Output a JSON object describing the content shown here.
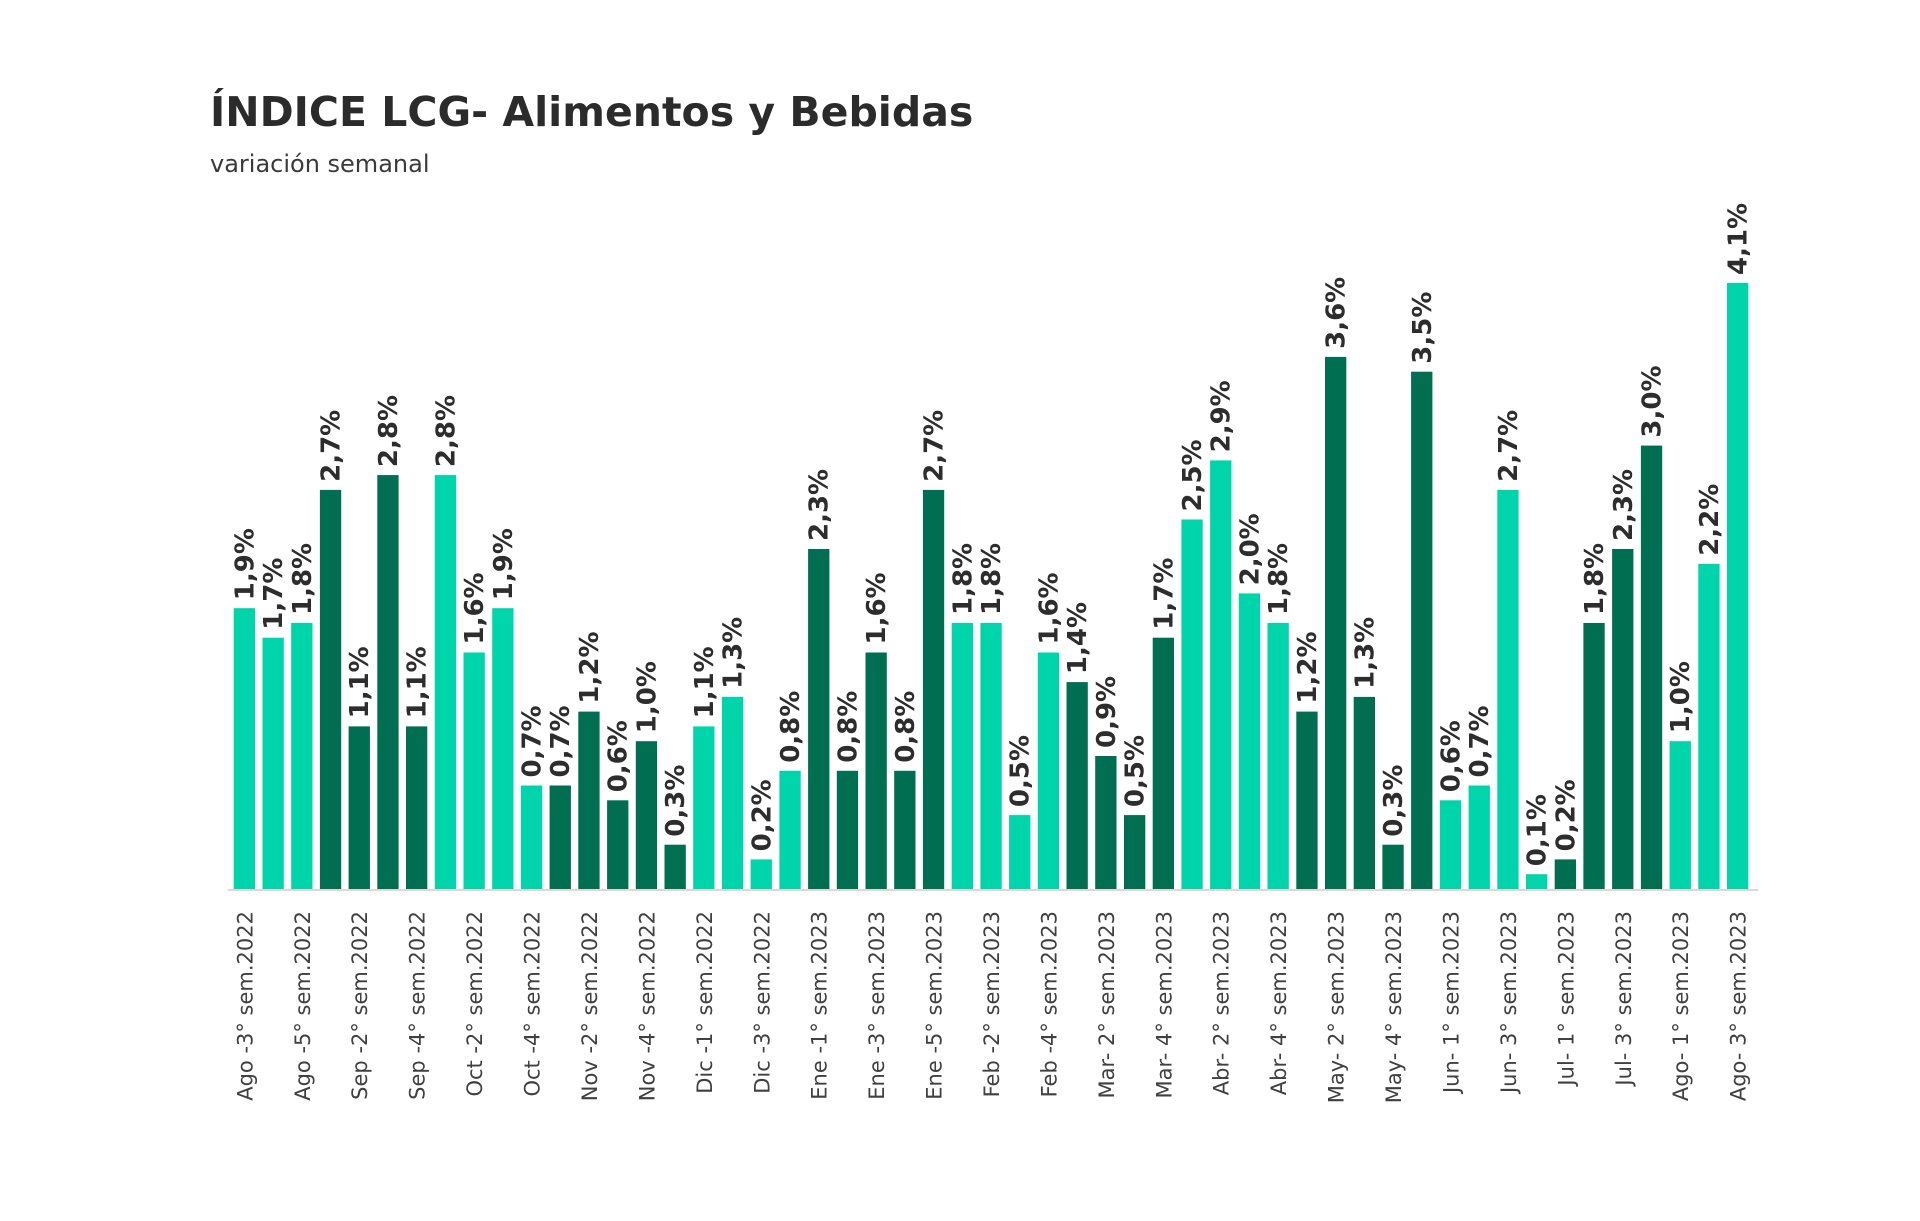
{
  "header": {
    "title": "ÍNDICE LCG- Alimentos y Bebidas",
    "subtitle": "variación semanal"
  },
  "colors": {
    "light": "#00D4AA",
    "dark": "#006E50",
    "axis": "#d9d9d9",
    "label": "#2d2d2d"
  },
  "chart_data": {
    "type": "bar",
    "title": "ÍNDICE LCG- Alimentos y Bebidas",
    "subtitle": "variación semanal",
    "xlabel": "",
    "ylabel": "",
    "ylim": [
      0,
      4.1
    ],
    "grid": false,
    "legend": "none",
    "label_every": 2,
    "tick_labels": [
      "Ago -3° sem.2022",
      "Ago -5° sem.2022",
      "Sep -2° sem.2022",
      "Sep -4° sem.2022",
      "Oct -2° sem.2022",
      "Oct -4° sem.2022",
      "Nov -2° sem.2022",
      "Nov -4° sem.2022",
      "Dic -1° sem.2022",
      "Dic -3° sem.2022",
      "Ene -1° sem.2023",
      "Ene -3° sem.2023",
      "Ene -5° sem.2023",
      "Feb -2° sem.2023",
      "Feb -4° sem.2023",
      "Mar- 2° sem.2023",
      "Mar- 4° sem.2023",
      "Abr- 2° sem.2023",
      "Abr- 4° sem.2023",
      "May- 2° sem.2023",
      "May- 4° sem.2023",
      "Jun- 1° sem.2023",
      "Jun- 3° sem.2023",
      "Jul- 1° sem.2023",
      "Jul- 3° sem.2023",
      "Ago- 1° sem.2023",
      "Ago- 3° sem.2023"
    ],
    "values": [
      1.9,
      1.7,
      1.8,
      2.7,
      1.1,
      2.8,
      1.1,
      2.8,
      1.6,
      1.9,
      0.7,
      0.7,
      1.2,
      0.6,
      1.0,
      0.3,
      1.1,
      1.3,
      0.2,
      0.8,
      2.3,
      0.8,
      1.6,
      0.8,
      2.7,
      1.8,
      1.8,
      0.5,
      1.6,
      1.4,
      0.9,
      0.5,
      1.7,
      2.5,
      2.9,
      2.0,
      1.8,
      1.2,
      3.6,
      1.3,
      0.3,
      3.5,
      0.6,
      0.7,
      2.7,
      0.1,
      0.2,
      1.8,
      2.3,
      3.0,
      1.0,
      2.2,
      4.1
    ],
    "data_labels": [
      "1,9%",
      "1,7%",
      "1,8%",
      "2,7%",
      "1,1%",
      "2,8%",
      "1,1%",
      "2,8%",
      "1,6%",
      "1,9%",
      "0,7%",
      "0,7%",
      "1,2%",
      "0,6%",
      "1,0%",
      "0,3%",
      "1,1%",
      "1,3%",
      "0,2%",
      "0,8%",
      "2,3%",
      "0,8%",
      "1,6%",
      "0,8%",
      "2,7%",
      "1,8%",
      "1,8%",
      "0,5%",
      "1,6%",
      "1,4%",
      "0,9%",
      "0,5%",
      "1,7%",
      "2,5%",
      "2,9%",
      "2,0%",
      "1,8%",
      "1,2%",
      "3,6%",
      "1,3%",
      "0,3%",
      "3,5%",
      "0,6%",
      "0,7%",
      "2,7%",
      "0,1%",
      "0,2%",
      "1,8%",
      "2,3%",
      "3,0%",
      "1,0%",
      "2,2%",
      "4,1%"
    ],
    "bar_shade": [
      "light",
      "light",
      "light",
      "dark",
      "dark",
      "dark",
      "dark",
      "light",
      "light",
      "light",
      "light",
      "dark",
      "dark",
      "dark",
      "dark",
      "dark",
      "light",
      "light",
      "light",
      "light",
      "dark",
      "dark",
      "dark",
      "dark",
      "dark",
      "light",
      "light",
      "light",
      "light",
      "dark",
      "dark",
      "dark",
      "dark",
      "light",
      "light",
      "light",
      "light",
      "dark",
      "dark",
      "dark",
      "dark",
      "dark",
      "light",
      "light",
      "light",
      "light",
      "dark",
      "dark",
      "dark",
      "dark",
      "light",
      "light",
      "light"
    ]
  }
}
